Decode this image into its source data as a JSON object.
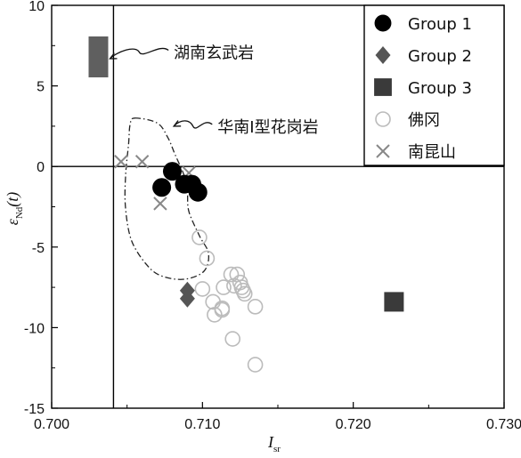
{
  "chart_data": {
    "type": "scatter",
    "xlabel": {
      "main": "I",
      "sub": "sr"
    },
    "ylabel": {
      "main": "ε",
      "sub": "Nd",
      "tail": "(t)"
    },
    "xlim": [
      0.7,
      0.73
    ],
    "ylim": [
      -15,
      10
    ],
    "xticks": [
      0.7,
      0.71,
      0.72,
      0.73
    ],
    "xtick_labels": [
      "0.700",
      "0.710",
      "0.720",
      "0.730"
    ],
    "yticks": [
      -15,
      -10,
      -5,
      0,
      5,
      10
    ],
    "ytick_labels": [
      "-15",
      "-10",
      "-5",
      "0",
      "5",
      "10"
    ],
    "grid": false,
    "legend_position": "top-right",
    "reference_lines": {
      "x": 0.7041,
      "y": 0
    },
    "series": [
      {
        "name": "Group 1",
        "marker": "filled-circle",
        "color": "#000000",
        "x": [
          0.7073,
          0.708,
          0.7088,
          0.7093,
          0.7097
        ],
        "y": [
          -1.3,
          -0.3,
          -1.1,
          -1.1,
          -1.6
        ]
      },
      {
        "name": "Group 2",
        "marker": "filled-diamond",
        "color": "#555555",
        "x": [
          0.709,
          0.709
        ],
        "y": [
          -7.7,
          -8.2
        ]
      },
      {
        "name": "Group 3",
        "marker": "filled-square",
        "color": "#3a3a3a",
        "x": [
          0.7031,
          0.7227
        ],
        "y": [
          6.8,
          -8.4
        ]
      },
      {
        "name": "佛冈",
        "marker": "open-circle",
        "color": "#bbbbbb",
        "x": [
          0.7098,
          0.7103,
          0.71,
          0.7107,
          0.7108,
          0.7113,
          0.7113,
          0.7114,
          0.7119,
          0.7121,
          0.7123,
          0.7125,
          0.7126,
          0.7128,
          0.7127,
          0.712,
          0.7135,
          0.7135
        ],
        "y": [
          -4.4,
          -5.7,
          -7.6,
          -8.4,
          -9.2,
          -8.8,
          -8.9,
          -7.5,
          -6.7,
          -7.4,
          -6.7,
          -7.2,
          -7.5,
          -7.9,
          -7.7,
          -10.7,
          -8.7,
          -12.3
        ]
      },
      {
        "name": "南昆山",
        "marker": "x",
        "color": "#888888",
        "x": [
          0.7046,
          0.706,
          0.7072,
          0.7091
        ],
        "y": [
          0.3,
          0.3,
          -2.3,
          -0.4
        ]
      }
    ],
    "region": {
      "label": "华南I型花岗岩",
      "style": "dash-dot",
      "outline": [
        [
          0.7055,
          3.0
        ],
        [
          0.707,
          2.7
        ],
        [
          0.7077,
          1.8
        ],
        [
          0.7082,
          0.7
        ],
        [
          0.7088,
          -0.6
        ],
        [
          0.709,
          -1.6
        ],
        [
          0.7091,
          -2.8
        ],
        [
          0.7098,
          -4.3
        ],
        [
          0.7104,
          -5.4
        ],
        [
          0.7101,
          -6.5
        ],
        [
          0.7088,
          -7.0
        ],
        [
          0.7073,
          -6.8
        ],
        [
          0.7063,
          -6.1
        ],
        [
          0.7053,
          -4.6
        ],
        [
          0.7049,
          -2.6
        ],
        [
          0.7049,
          -0.6
        ],
        [
          0.7051,
          1.4
        ],
        [
          0.7052,
          2.6
        ]
      ]
    },
    "annotations": [
      {
        "text": "湖南玄武岩",
        "target": [
          0.7031,
          6.8
        ],
        "text_at": [
          0.7081,
          7.1
        ]
      },
      {
        "text": "华南I型花岗岩",
        "target": [
          0.7081,
          2.5
        ],
        "text_at": [
          0.711,
          2.5
        ]
      }
    ]
  }
}
